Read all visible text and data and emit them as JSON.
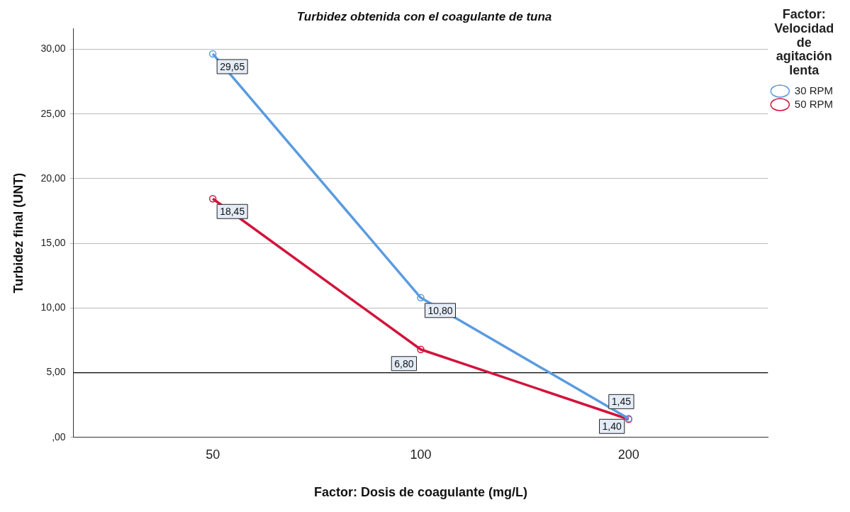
{
  "chart_data": {
    "type": "line",
    "title": "Turbidez obtenida con el coagulante de tuna",
    "xlabel": "Factor: Dosis de coagulante (mg/L)",
    "ylabel": "Turbidez final (UNT)",
    "legend_title": "Factor: Velocidad de agitación lenta",
    "categories": [
      "50",
      "100",
      "200"
    ],
    "series": [
      {
        "name": "30 RPM",
        "color": "#5a9be0",
        "values": [
          29.65,
          10.8,
          1.45
        ],
        "value_labels": [
          "29,65",
          "10,80",
          "1,45"
        ]
      },
      {
        "name": "50 RPM",
        "color": "#d2143c",
        "values": [
          18.45,
          6.8,
          1.4
        ],
        "value_labels": [
          "18,45",
          "6,80",
          "1,40"
        ]
      }
    ],
    "ylim": [
      0,
      31.6
    ],
    "yticks": [
      {
        "value": 0,
        "label": ",00"
      },
      {
        "value": 5,
        "label": "5,00"
      },
      {
        "value": 10,
        "label": "10,00"
      },
      {
        "value": 15,
        "label": "15,00"
      },
      {
        "value": 20,
        "label": "20,00"
      },
      {
        "value": 25,
        "label": "25,00"
      },
      {
        "value": 30,
        "label": "30,00"
      }
    ],
    "ref_lines": [
      {
        "axis": "y",
        "value": 5,
        "label": null,
        "color": "#000000"
      }
    ],
    "grid": "y",
    "legend": "top right",
    "marker": "circle",
    "line_style": "solid"
  }
}
